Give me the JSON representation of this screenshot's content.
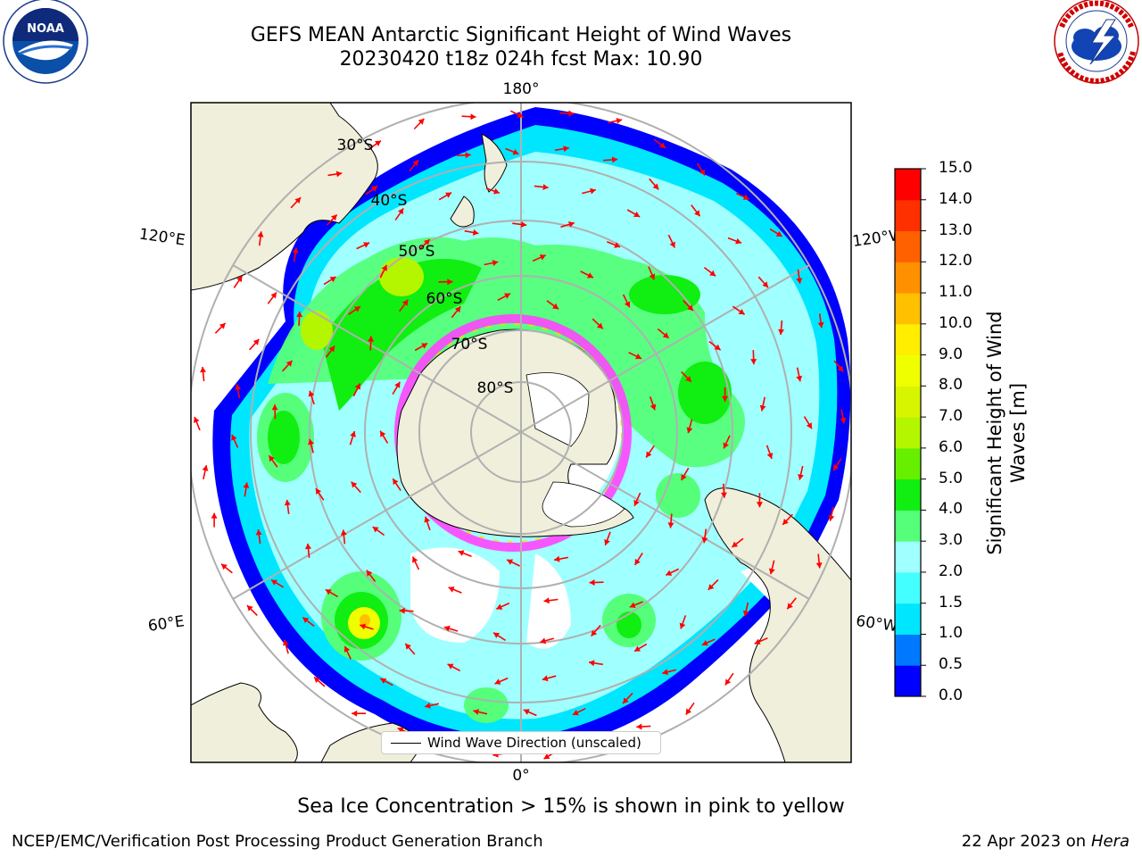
{
  "title": {
    "line1": "GEFS MEAN Antarctic Significant Height of Wind Waves",
    "line2": "20230420 t18z 024h fcst   Max: 10.90"
  },
  "logos": {
    "left": {
      "icon": "noaa-logo",
      "text": "NOAA",
      "ring_text": "NATIONAL OCEANIC AND ATMOSPHERIC ADMINISTRATION · U.S. DEPARTMENT OF COMMERCE"
    },
    "right": {
      "icon": "nws-logo",
      "ring_text": "NATIONAL WEATHER SERVICE"
    }
  },
  "map": {
    "projection": "south-polar-stereographic",
    "lon_labels": {
      "top": "180°",
      "bottom": "0°",
      "upper_left": "120°E",
      "upper_right": "120°W",
      "lower_left": "60°E",
      "lower_right": "60°W"
    },
    "lat_labels": [
      "30°S",
      "40°S",
      "50°S",
      "60°S",
      "70°S",
      "80°S"
    ],
    "land_color": "#efefdb",
    "ice_colors": [
      "#ff44ff",
      "#ffd700"
    ]
  },
  "legend": {
    "label": "Wind Wave Direction (unscaled)"
  },
  "colorbar": {
    "label": "Significant Height of Wind Waves [m]",
    "ticks": [
      "0.0",
      "0.5",
      "1.0",
      "1.5",
      "2.0",
      "3.0",
      "4.0",
      "5.0",
      "6.0",
      "7.0",
      "8.0",
      "9.0",
      "10.0",
      "11.0",
      "12.0",
      "13.0",
      "14.0",
      "15.0"
    ],
    "colors": [
      "#0000ff",
      "#0078ff",
      "#00e6ff",
      "#44ffff",
      "#a0ffff",
      "#55ff7a",
      "#11ee11",
      "#66f000",
      "#b4f500",
      "#d8f500",
      "#f0ff00",
      "#ffee00",
      "#ffc000",
      "#ff9000",
      "#ff6000",
      "#ff3000",
      "#ff0000"
    ]
  },
  "footer": {
    "note": "Sea Ice Concentration > 15% is shown in pink to yellow",
    "left": "NCEP/EMC/Verification Post Processing Product Generation Branch",
    "right_prefix": "22 Apr 2023 on ",
    "right_host": "Hera"
  }
}
